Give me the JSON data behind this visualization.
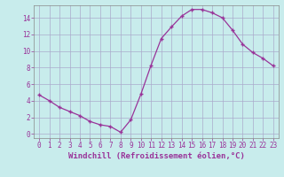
{
  "x": [
    0,
    1,
    2,
    3,
    4,
    5,
    6,
    7,
    8,
    9,
    10,
    11,
    12,
    13,
    14,
    15,
    16,
    17,
    18,
    19,
    20,
    21,
    22,
    23
  ],
  "y": [
    4.7,
    4.0,
    3.2,
    2.7,
    2.2,
    1.5,
    1.1,
    0.9,
    0.2,
    1.7,
    4.8,
    8.3,
    11.5,
    12.9,
    14.2,
    15.0,
    15.0,
    14.6,
    14.0,
    12.5,
    10.8,
    9.8,
    9.1,
    8.2
  ],
  "line_color": "#993399",
  "marker": "+",
  "bg_color": "#c8ecec",
  "xlabel": "Windchill (Refroidissement éolien,°C)",
  "xlabel_color": "#993399",
  "tick_color": "#993399",
  "grid_color": "#aaaacc",
  "xlim": [
    -0.5,
    23.5
  ],
  "ylim": [
    -0.5,
    15.5
  ],
  "yticks": [
    0,
    2,
    4,
    6,
    8,
    10,
    12,
    14
  ],
  "xticks": [
    0,
    1,
    2,
    3,
    4,
    5,
    6,
    7,
    8,
    9,
    10,
    11,
    12,
    13,
    14,
    15,
    16,
    17,
    18,
    19,
    20,
    21,
    22,
    23
  ],
  "xlabel_fontsize": 6.5,
  "tick_fontsize": 5.5
}
